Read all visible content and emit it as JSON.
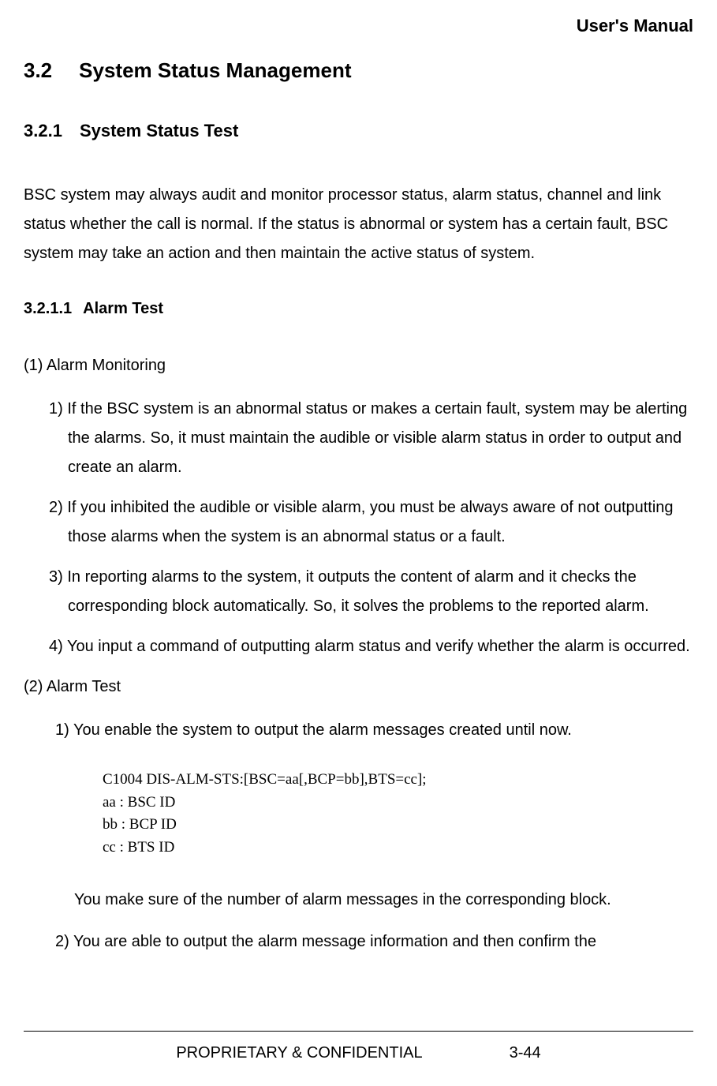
{
  "header": {
    "title": "User's Manual"
  },
  "section_h1": {
    "num": "3.2",
    "title": "System Status Management"
  },
  "section_h2": {
    "num": "3.2.1",
    "title": "System Status Test"
  },
  "intro_para": "BSC system may always audit and monitor processor status, alarm status, channel and link status whether the call is normal. If the status is abnormal or system has a certain fault, BSC system may take an action and then maintain the active status of system.",
  "section_h3": {
    "num": "3.2.1.1",
    "title": "Alarm Test"
  },
  "group1": {
    "title": "(1) Alarm Monitoring",
    "items": [
      "1) If the BSC system is an abnormal status or makes a certain fault, system may be alerting the alarms. So, it must maintain the audible or visible alarm status in order to output and create an alarm.",
      "2) If you inhibited the audible or visible alarm, you must be always aware of not outputting those alarms when the system is an abnormal status or a fault.",
      "3) In reporting alarms to the system, it outputs the content of alarm and it checks the corresponding block automatically. So, it solves the problems to the reported alarm.",
      "4) You input a command of outputting alarm status and verify whether the alarm is occurred."
    ]
  },
  "group2": {
    "title": "(2) Alarm Test",
    "item1": "1) You enable the system to output the alarm messages created until now.",
    "code": {
      "l1": "C1004  DIS-ALM-STS:[BSC=aa[,BCP=bb],BTS=cc];",
      "l2": "aa :  BSC  ID",
      "l3": "bb :  BCP  ID",
      "l4": "cc :  BTS  ID"
    },
    "note": "You make sure of the number of alarm messages in the corresponding block.",
    "item2": "2) You are able to output the alarm message information and then confirm the"
  },
  "footer": {
    "conf": "PROPRIETARY & CONFIDENTIAL",
    "pageno": "3-44"
  }
}
